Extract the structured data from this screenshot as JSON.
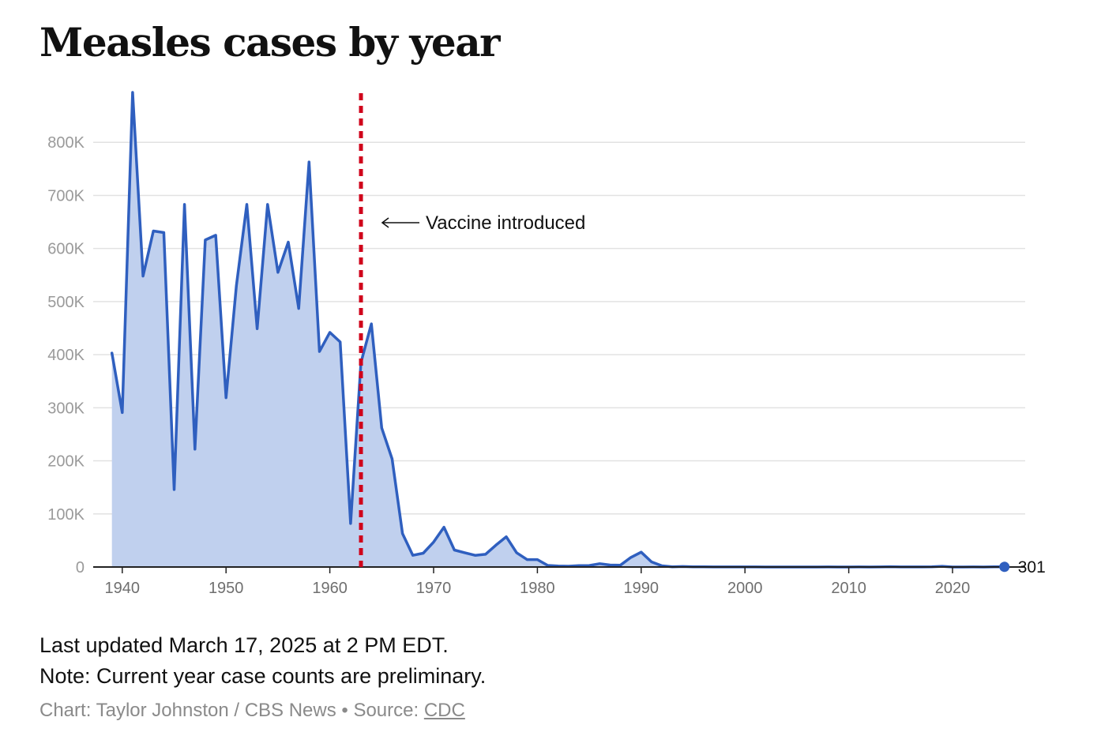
{
  "title": "Measles cases by year",
  "footer": {
    "updated": "Last updated March 17, 2025 at 2 PM EDT.",
    "note": "Note: Current year case counts are preliminary.",
    "credit_prefix": "Chart: Taylor Johnston / CBS News • Source: ",
    "source_link": "CDC"
  },
  "colors": {
    "line": "#2f5fbf",
    "fill": "#c0d0ee",
    "vaccine_line": "#d0021b",
    "grid": "#e2e2e2",
    "axis": "#222222"
  },
  "chart_data": {
    "type": "area",
    "title": "Measles cases by year",
    "xlabel": "",
    "ylabel": "",
    "xlim": [
      1937.2,
      2027.0
    ],
    "ylim": [
      0,
      900000
    ],
    "y_ticks": [
      0,
      100000,
      200000,
      300000,
      400000,
      500000,
      600000,
      700000,
      800000
    ],
    "y_tick_labels": [
      "0",
      "100K",
      "200K",
      "300K",
      "400K",
      "500K",
      "600K",
      "700K",
      "800K"
    ],
    "x_ticks": [
      1940,
      1950,
      1960,
      1970,
      1980,
      1990,
      2000,
      2010,
      2020
    ],
    "x_tick_labels": [
      "1940",
      "1950",
      "1960",
      "1970",
      "1980",
      "1990",
      "2000",
      "2010",
      "2020"
    ],
    "grid": true,
    "annotations": [
      {
        "x": 1963,
        "text": "Vaccine introduced",
        "style": "dashed-vertical-line"
      }
    ],
    "end_label": {
      "x": 2025,
      "text": "301"
    },
    "series": [
      {
        "x": [
          1939,
          1940,
          1941,
          1942,
          1943,
          1944,
          1945,
          1946,
          1947,
          1948,
          1949,
          1950,
          1951,
          1952,
          1953,
          1954,
          1955,
          1956,
          1957,
          1958,
          1959,
          1960,
          1961,
          1962,
          1963,
          1964,
          1965,
          1966,
          1967,
          1968,
          1969,
          1970,
          1971,
          1972,
          1973,
          1974,
          1975,
          1976,
          1977,
          1978,
          1979,
          1980,
          1981,
          1982,
          1983,
          1984,
          1985,
          1986,
          1987,
          1988,
          1989,
          1990,
          1991,
          1992,
          1993,
          1994,
          1995,
          1996,
          1997,
          1998,
          1999,
          2000,
          2001,
          2002,
          2003,
          2004,
          2005,
          2006,
          2007,
          2008,
          2009,
          2010,
          2011,
          2012,
          2013,
          2014,
          2015,
          2016,
          2017,
          2018,
          2019,
          2020,
          2021,
          2022,
          2023,
          2024,
          2025
        ],
        "values": [
          403000,
          291000,
          894000,
          548000,
          633000,
          630000,
          146000,
          683000,
          222000,
          616000,
          625000,
          319000,
          530000,
          683000,
          449000,
          683000,
          555000,
          612000,
          487000,
          763000,
          406000,
          442000,
          424000,
          82000,
          385000,
          458000,
          262000,
          204000,
          63000,
          22000,
          26000,
          47000,
          75000,
          32000,
          27000,
          22000,
          24000,
          41000,
          57000,
          27000,
          14000,
          14000,
          3000,
          2000,
          1500,
          2600,
          2800,
          6300,
          3700,
          3400,
          18000,
          28000,
          9600,
          2200,
          312,
          958,
          309,
          508,
          138,
          100,
          100,
          86,
          116,
          44,
          56,
          37,
          66,
          55,
          43,
          140,
          71,
          63,
          220,
          55,
          187,
          667,
          188,
          86,
          120,
          375,
          1274,
          13,
          49,
          121,
          59,
          285,
          301
        ]
      }
    ]
  }
}
